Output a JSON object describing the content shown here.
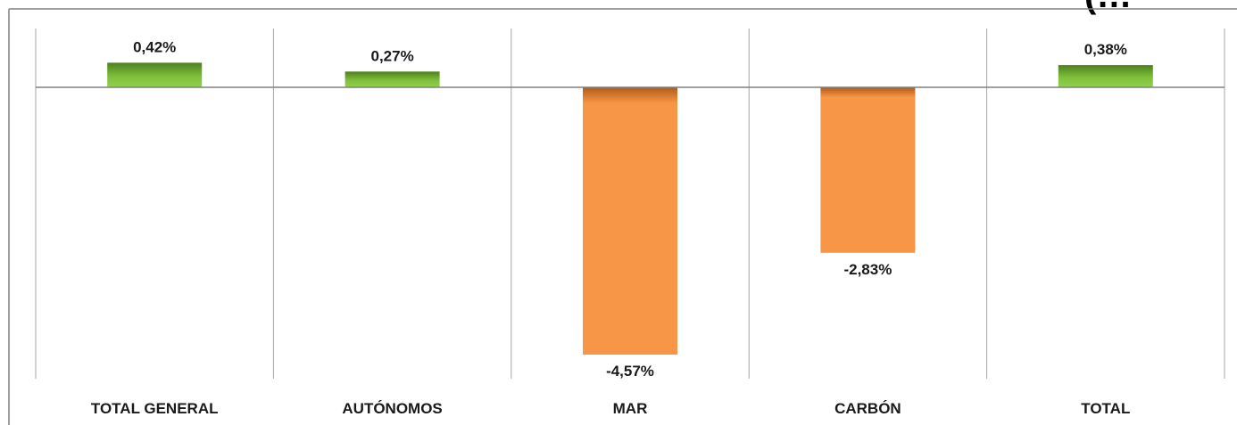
{
  "chart_data": {
    "type": "bar",
    "title_fragment": "(…",
    "categories": [
      "TOTAL GENERAL",
      "AUTÓNOMOS",
      "MAR",
      "CARBÓN",
      "TOTAL"
    ],
    "values": [
      0.42,
      0.27,
      -4.57,
      -2.83,
      0.38
    ],
    "value_labels": [
      "0,42%",
      "0,27%",
      "-4,57%",
      "-2,83%",
      "0,38%"
    ],
    "ylim": [
      -4.6,
      0.45
    ],
    "grid": false,
    "legend": "none",
    "colors": {
      "positive": "#92d050",
      "positive_dark": "#4e7f1e",
      "negative": "#f79646",
      "negative_dark": "#b25a18",
      "axis": "#808080",
      "divider": "#a6a6a6"
    }
  }
}
